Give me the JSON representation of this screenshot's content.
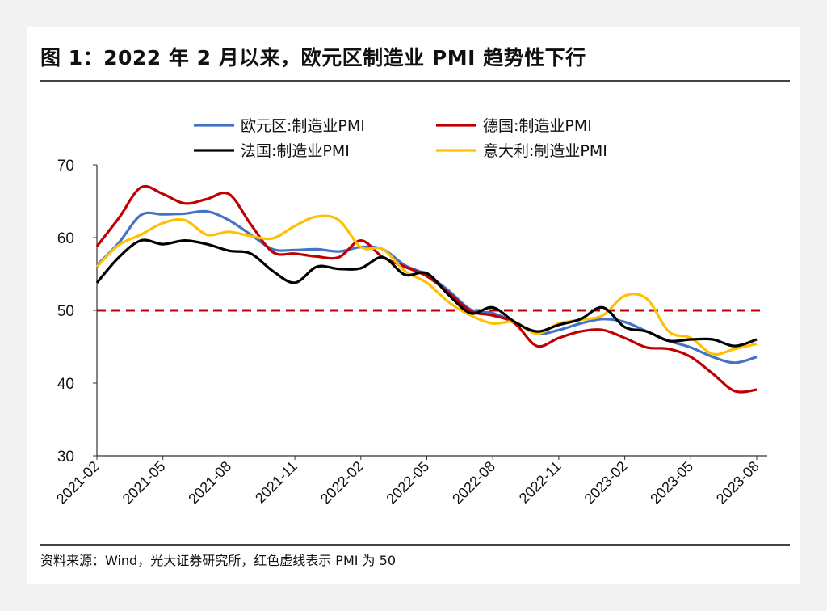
{
  "title": "图 1：2022 年 2 月以来，欧元区制造业 PMI 趋势性下行",
  "source": "资料来源：Wind，光大证券研究所，红色虚线表示 PMI 为 50",
  "chart_data": {
    "type": "line",
    "ylim": [
      30,
      70
    ],
    "yticks": [
      "30",
      "40",
      "50",
      "60",
      "70"
    ],
    "xtick_labels": [
      "2021-02",
      "2021-05",
      "2021-08",
      "2021-11",
      "2022-02",
      "2022-05",
      "2022-08",
      "2022-11",
      "2023-02",
      "2023-05",
      "2023-08"
    ],
    "x": [
      "2021-02",
      "2021-03",
      "2021-04",
      "2021-05",
      "2021-06",
      "2021-07",
      "2021-08",
      "2021-09",
      "2021-10",
      "2021-11",
      "2021-12",
      "2022-01",
      "2022-02",
      "2022-03",
      "2022-04",
      "2022-05",
      "2022-06",
      "2022-07",
      "2022-08",
      "2022-09",
      "2022-10",
      "2022-11",
      "2022-12",
      "2023-01",
      "2023-02",
      "2023-03",
      "2023-04",
      "2023-05",
      "2023-06",
      "2023-07",
      "2023-08"
    ],
    "reference_line": {
      "value": 50,
      "color": "#c00000",
      "style": "dashed"
    },
    "legend_position": "top",
    "grid": false,
    "series": [
      {
        "name": "欧元区:制造业PMI",
        "color": "#4472c4",
        "values": [
          56.2,
          59.3,
          63.1,
          63.2,
          63.3,
          63.6,
          62.4,
          60.4,
          58.4,
          58.3,
          58.4,
          58.1,
          58.7,
          58.4,
          56.2,
          54.9,
          52.7,
          50.1,
          49.6,
          48.4,
          46.8,
          47.3,
          48.2,
          48.8,
          48.4,
          47.1,
          45.8,
          44.9,
          43.6,
          42.8,
          43.6
        ]
      },
      {
        "name": "德国:制造业PMI",
        "color": "#c00000",
        "values": [
          58.8,
          62.7,
          66.9,
          66.0,
          64.7,
          65.3,
          66.0,
          61.8,
          58.0,
          57.8,
          57.4,
          57.3,
          59.6,
          57.3,
          56.0,
          54.7,
          52.4,
          49.9,
          49.3,
          48.2,
          45.1,
          46.2,
          47.1,
          47.3,
          46.2,
          44.9,
          44.7,
          43.6,
          41.3,
          38.9,
          39.1
        ]
      },
      {
        "name": "法国:制造业PMI",
        "color": "#000000",
        "values": [
          53.8,
          57.3,
          59.6,
          59.1,
          59.6,
          59.1,
          58.2,
          57.8,
          55.4,
          53.8,
          56.0,
          55.7,
          55.8,
          57.3,
          54.9,
          55.1,
          52.1,
          49.6,
          50.4,
          48.4,
          47.1,
          48.0,
          48.8,
          50.4,
          47.7,
          47.1,
          45.8,
          46.0,
          46.0,
          45.1,
          46.0
        ]
      },
      {
        "name": "意大利:制造业PMI",
        "color": "#ffc000",
        "values": [
          56.0,
          59.0,
          60.4,
          62.0,
          62.4,
          60.4,
          60.8,
          60.2,
          59.9,
          61.6,
          62.9,
          62.4,
          58.7,
          58.4,
          55.4,
          53.8,
          51.1,
          49.3,
          48.2,
          48.4,
          46.8,
          48.2,
          48.7,
          49.3,
          52.0,
          51.6,
          47.1,
          46.2,
          44.0,
          44.7,
          45.4
        ]
      }
    ]
  }
}
